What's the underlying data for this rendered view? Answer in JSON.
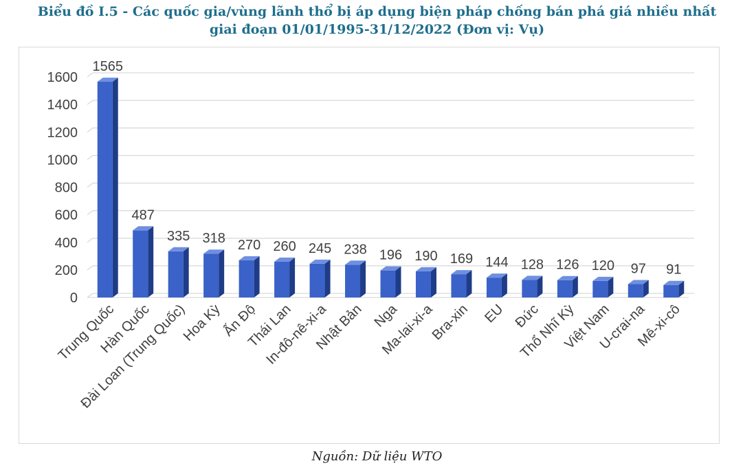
{
  "title_line1": "Biểu đồ I.5 - Các quốc gia/vùng lãnh thổ bị áp dụng biện pháp chống bán phá giá nhiều nhất",
  "title_line2": "giai đoạn 01/01/1995-31/12/2022 (Đơn vị: Vụ)",
  "source": "Nguồn: Dữ liệu WTO",
  "colors": {
    "bar_front": "#3a62c8",
    "bar_side": "#1f3c88",
    "bar_top": "#6f8fe0",
    "grid": "#d9d9d9"
  },
  "chart_data": {
    "type": "bar",
    "categories": [
      "Trung Quốc",
      "Hàn Quốc",
      "Đài Loan (Trung Quốc)",
      "Hoa Kỳ",
      "Ấn Độ",
      "Thái Lan",
      "In-đô-nê-xi-a",
      "Nhật Bản",
      "Nga",
      "Ma-lai-xi-a",
      "Bra-xin",
      "EU",
      "Đức",
      "Thổ Nhĩ Kỳ",
      "Việt Nam",
      "U-crai-na",
      "Mê-xi-cô"
    ],
    "values": [
      1565,
      487,
      335,
      318,
      270,
      260,
      245,
      238,
      196,
      190,
      169,
      144,
      128,
      126,
      120,
      97,
      91
    ],
    "yticks": [
      0,
      200,
      400,
      600,
      800,
      1000,
      1200,
      1400,
      1600
    ],
    "ylim": [
      0,
      1600
    ],
    "grid": true,
    "data_labels": true
  }
}
